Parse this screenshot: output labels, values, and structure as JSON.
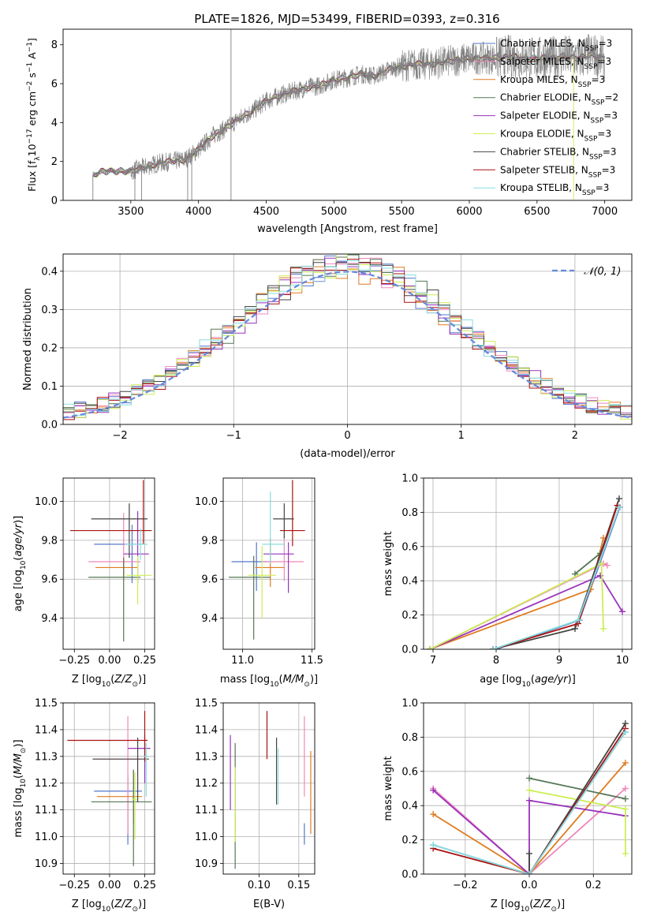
{
  "title": "PLATE=1826, MJD=53499, FIBERID=0393, z=0.316",
  "colors": {
    "Chabrier MILES": "#5577cc",
    "Salpeter MILES": "#ee88bb",
    "Kroupa MILES": "#e07b20",
    "Chabrier ELODIE": "#557755",
    "Salpeter ELODIE": "#9933bb",
    "Kroupa ELODIE": "#ccee55",
    "Chabrier STELIB": "#444444",
    "Salpeter STELIB": "#aa1111",
    "Kroupa STELIB": "#88dddd",
    "observed": "#808080",
    "normal_curve": "#6688dd"
  },
  "chart_data": [
    {
      "id": "spectrum",
      "type": "line",
      "title": "PLATE=1826, MJD=53499, FIBERID=0393, z=0.316",
      "xlabel": "wavelength [Angstrom, rest frame]",
      "ylabel": "Flux [fλ10⁻¹⁷ erg cm⁻² s⁻¹ A⁻¹]",
      "xlim": [
        3000,
        7200
      ],
      "ylim": [
        0,
        8.8
      ],
      "xticks": [
        3500,
        4000,
        4500,
        5000,
        5500,
        6000,
        6500,
        7000
      ],
      "yticks": [
        0,
        2,
        4,
        6,
        8
      ],
      "legend_position": "top-right",
      "legend": [
        "Chabrier MILES, N_SSP=3",
        "Salpeter MILES, N_SSP=3",
        "Kroupa MILES, N_SSP=3",
        "Chabrier ELODIE, N_SSP=2",
        "Salpeter ELODIE, N_SSP=3",
        "Kroupa ELODIE, N_SSP=3",
        "Chabrier STELIB, N_SSP=3",
        "Salpeter STELIB, N_SSP=3",
        "Kroupa STELIB, N_SSP=3"
      ],
      "continuum": {
        "x": [
          3220,
          3300,
          3400,
          3500,
          3600,
          3700,
          3800,
          3900,
          4000,
          4100,
          4200,
          4300,
          4400,
          4500,
          4600,
          4700,
          4800,
          4900,
          5000,
          5100,
          5200,
          5300,
          5400,
          5500,
          5600,
          5700,
          5800,
          5900,
          6000,
          6100,
          6200,
          6300,
          6400,
          6500,
          6600,
          6700,
          6800,
          6900,
          7000
        ],
        "y": [
          1.3,
          1.5,
          1.5,
          1.5,
          1.7,
          1.9,
          2.0,
          2.1,
          2.6,
          3.3,
          3.7,
          4.2,
          4.6,
          5.1,
          5.4,
          5.6,
          5.8,
          5.9,
          6.2,
          6.3,
          6.5,
          6.4,
          6.7,
          6.9,
          7.0,
          7.0,
          7.1,
          7.2,
          7.3,
          7.3,
          7.3,
          7.4,
          7.3,
          7.3,
          7.3,
          7.4,
          7.3,
          7.5,
          7.3
        ]
      }
    },
    {
      "id": "residuals",
      "type": "histogram",
      "xlabel": "(data-model)/error",
      "ylabel": "Normed distribution",
      "xlim": [
        -2.5,
        2.5
      ],
      "ylim": [
        0,
        0.445
      ],
      "xticks": [
        -2,
        -1,
        0,
        1,
        2
      ],
      "yticks": [
        0.0,
        0.1,
        0.2,
        0.3,
        0.4
      ],
      "legend": [
        "𝒩(0, 1)"
      ],
      "legend_position": "top-right",
      "bin_width": 0.1
    },
    {
      "id": "age-vs-Z",
      "type": "scatter",
      "xlabel": "Z [log₁₀(Z/Z⊙)]",
      "ylabel": "age  [log₁₀(age/yr)]",
      "xlim": [
        -0.33,
        0.32
      ],
      "ylim": [
        9.24,
        10.12
      ],
      "xticks": [
        -0.25,
        0.0,
        0.25
      ],
      "yticks": [
        9.4,
        9.6,
        9.8,
        10.0
      ],
      "points": [
        {
          "model": "Chabrier MILES",
          "x": 0.16,
          "xerr": [
            0.27,
            0.08
          ],
          "y": 9.78,
          "yerr": [
            0.2,
            0.1
          ]
        },
        {
          "model": "Salpeter MILES",
          "x": 0.1,
          "xerr": [
            0.25,
            0.12
          ],
          "y": 9.69,
          "yerr": [
            0.1,
            0.25
          ]
        },
        {
          "model": "Kroupa MILES",
          "x": 0.1,
          "xerr": [
            0.2,
            0.1
          ],
          "y": 9.66,
          "yerr": [
            0.05,
            0.05
          ]
        },
        {
          "model": "Chabrier ELODIE",
          "x": 0.1,
          "xerr": [
            0.25,
            0.12
          ],
          "y": 9.61,
          "yerr": [
            0.33,
            0.1
          ]
        },
        {
          "model": "Salpeter ELODIE",
          "x": 0.2,
          "xerr": [
            0.1,
            0.08
          ],
          "y": 9.73,
          "yerr": [
            0.15,
            0.22
          ]
        },
        {
          "model": "Kroupa ELODIE",
          "x": 0.2,
          "xerr": [
            0.08,
            0.1
          ],
          "y": 9.62,
          "yerr": [
            0.15,
            0.1
          ]
        },
        {
          "model": "Chabrier STELIB",
          "x": 0.14,
          "xerr": [
            0.27,
            0.13
          ],
          "y": 9.91,
          "yerr": [
            0.2,
            0.08
          ]
        },
        {
          "model": "Salpeter STELIB",
          "x": 0.24,
          "xerr": [
            0.52,
            0.06
          ],
          "y": 9.85,
          "yerr": [
            0.07,
            0.26
          ]
        },
        {
          "model": "Kroupa STELIB",
          "x": 0.22,
          "xerr": [
            0.11,
            0.05
          ],
          "y": 9.78,
          "yerr": [
            0.08,
            0.08
          ]
        }
      ]
    },
    {
      "id": "age-vs-mass",
      "type": "scatter",
      "xlabel": "mass [log₁₀(M/M⊙)]",
      "ylabel": "",
      "xlim": [
        10.86,
        11.52
      ],
      "ylim": [
        9.24,
        10.12
      ],
      "xticks": [
        11.0,
        11.5
      ],
      "yticks": [
        9.4,
        9.6,
        9.8,
        10.0
      ],
      "points": [
        {
          "model": "Chabrier MILES",
          "x": 11.1,
          "xerr": [
            0.18,
            0.1
          ],
          "y": 9.69,
          "yerr": [
            0.15,
            0.1
          ]
        },
        {
          "model": "Salpeter MILES",
          "x": 11.3,
          "xerr": [
            0.16,
            0.14
          ],
          "y": 9.69,
          "yerr": [
            0.1,
            0.13
          ]
        },
        {
          "model": "Kroupa MILES",
          "x": 11.2,
          "xerr": [
            0.11,
            0.1
          ],
          "y": 9.66,
          "yerr": [
            0.1,
            0.15
          ]
        },
        {
          "model": "Chabrier ELODIE",
          "x": 11.08,
          "xerr": [
            0.18,
            0.12
          ],
          "y": 9.61,
          "yerr": [
            0.32,
            0.11
          ]
        },
        {
          "model": "Salpeter ELODIE",
          "x": 11.33,
          "xerr": [
            0.18,
            0.04
          ],
          "y": 9.73,
          "yerr": [
            0.2,
            0.06
          ]
        },
        {
          "model": "Kroupa ELODIE",
          "x": 11.14,
          "xerr": [
            0.1,
            0.1
          ],
          "y": 9.62,
          "yerr": [
            0.22,
            0.15
          ]
        },
        {
          "model": "Chabrier STELIB",
          "x": 11.3,
          "xerr": [
            0.08,
            0.07
          ],
          "y": 9.91,
          "yerr": [
            0.1,
            0.08
          ]
        },
        {
          "model": "Salpeter STELIB",
          "x": 11.36,
          "xerr": [
            0.09,
            0.09
          ],
          "y": 9.85,
          "yerr": [
            0.08,
            0.26
          ]
        },
        {
          "model": "Kroupa STELIB",
          "x": 11.2,
          "xerr": [
            0.06,
            0.1
          ],
          "y": 9.78,
          "yerr": [
            0.1,
            0.27
          ]
        }
      ]
    },
    {
      "id": "massweight-vs-age",
      "type": "line",
      "xlabel": "age  [log₁₀(age/yr)]",
      "ylabel": "mass weight",
      "xlim": [
        6.85,
        10.15
      ],
      "ylim": [
        0,
        1.0
      ],
      "xticks": [
        7,
        8,
        9,
        10
      ],
      "yticks": [
        0.0,
        0.2,
        0.4,
        0.6,
        0.8,
        1.0
      ],
      "series": [
        {
          "model": "Chabrier MILES",
          "x": [
            8.0,
            9.32,
            9.96
          ],
          "y": [
            0.0,
            0.17,
            0.83
          ]
        },
        {
          "model": "Salpeter MILES",
          "x": [
            6.95,
            9.7,
            9.76
          ],
          "y": [
            0.0,
            0.5,
            0.49
          ]
        },
        {
          "model": "Kroupa MILES",
          "x": [
            6.95,
            9.5,
            9.7
          ],
          "y": [
            0.0,
            0.35,
            0.65
          ]
        },
        {
          "model": "Chabrier ELODIE",
          "x": [
            9.25,
            9.65
          ],
          "y": [
            0.44,
            0.56
          ]
        },
        {
          "model": "Salpeter ELODIE",
          "x": [
            6.95,
            9.65,
            10.0
          ],
          "y": [
            0.0,
            0.43,
            0.22
          ]
        },
        {
          "model": "Kroupa ELODIE",
          "x": [
            6.95,
            9.67,
            9.7
          ],
          "y": [
            0.0,
            0.5,
            0.12
          ]
        },
        {
          "model": "Chabrier STELIB",
          "x": [
            7.95,
            9.25,
            9.95
          ],
          "y": [
            0.0,
            0.12,
            0.88
          ]
        },
        {
          "model": "Salpeter STELIB",
          "x": [
            7.95,
            9.3,
            9.92
          ],
          "y": [
            0.0,
            0.15,
            0.84
          ]
        },
        {
          "model": "Kroupa STELIB",
          "x": [
            7.95,
            9.3,
            9.95
          ],
          "y": [
            0.0,
            0.17,
            0.83
          ]
        }
      ]
    },
    {
      "id": "mass-vs-Z",
      "type": "scatter",
      "xlabel": "Z [log₁₀(Z/Z⊙)]",
      "ylabel": "mass [log₁₀(M/M⊙)]",
      "xlim": [
        -0.33,
        0.32
      ],
      "ylim": [
        10.86,
        11.5
      ],
      "xticks": [
        -0.25,
        0.0,
        0.25
      ],
      "yticks": [
        10.9,
        11.0,
        11.1,
        11.2,
        11.3,
        11.4,
        11.5
      ],
      "points": [
        {
          "model": "Chabrier MILES",
          "x": 0.13,
          "xerr": [
            0.24,
            0.1
          ],
          "y": 11.17,
          "yerr": [
            0.2,
            0.06
          ]
        },
        {
          "model": "Salpeter MILES",
          "x": 0.13,
          "xerr": [
            0.25,
            0.09
          ],
          "y": 11.29,
          "yerr": [
            0.28,
            0.16
          ]
        },
        {
          "model": "Kroupa MILES",
          "x": 0.17,
          "xerr": [
            0.26,
            0.06
          ],
          "y": 11.15,
          "yerr": [
            0.1,
            0.1
          ]
        },
        {
          "model": "Chabrier ELODIE",
          "x": 0.17,
          "xerr": [
            0.3,
            0.13
          ],
          "y": 11.13,
          "yerr": [
            0.24,
            0.12
          ]
        },
        {
          "model": "Salpeter ELODIE",
          "x": 0.25,
          "xerr": [
            0.12,
            0.04
          ],
          "y": 11.33,
          "yerr": [
            0.13,
            0.05
          ]
        },
        {
          "model": "Kroupa ELODIE",
          "x": 0.18,
          "xerr": [
            0.02,
            0.02
          ],
          "y": 11.14,
          "yerr": [
            0.15,
            0.1
          ]
        },
        {
          "model": "Chabrier STELIB",
          "x": 0.2,
          "xerr": [
            0.32,
            0.08
          ],
          "y": 11.29,
          "yerr": [
            0.16,
            0.08
          ]
        },
        {
          "model": "Salpeter STELIB",
          "x": 0.25,
          "xerr": [
            0.55,
            0.02
          ],
          "y": 11.36,
          "yerr": [
            0.08,
            0.11
          ]
        },
        {
          "model": "Kroupa STELIB",
          "x": 0.26,
          "xerr": [
            0.02,
            0.02
          ],
          "y": 11.3,
          "yerr": [
            0.15,
            0.05
          ]
        }
      ]
    },
    {
      "id": "mass-vs-EBV",
      "type": "scatter",
      "xlabel": "E(B-V)",
      "ylabel": "",
      "xlim": [
        0.055,
        0.17
      ],
      "ylim": [
        10.86,
        11.5
      ],
      "xticks": [
        0.1,
        0.15
      ],
      "yticks": [
        10.9,
        11.0,
        11.1,
        11.2,
        11.3,
        11.4,
        11.5
      ],
      "points": [
        {
          "model": "Chabrier MILES",
          "x": 0.157,
          "y": 11.05,
          "yerr": [
            0.08,
            0.0
          ]
        },
        {
          "model": "Salpeter MILES",
          "x": 0.157,
          "y": 11.3,
          "yerr": [
            0.15,
            0.15
          ]
        },
        {
          "model": "Kroupa MILES",
          "x": 0.165,
          "y": 11.18,
          "yerr": [
            0.17,
            0.14
          ]
        },
        {
          "model": "Chabrier ELODIE",
          "x": 0.07,
          "y": 11.13,
          "yerr": [
            0.25,
            0.22
          ]
        },
        {
          "model": "Salpeter ELODIE",
          "x": 0.064,
          "y": 11.24,
          "yerr": [
            0.14,
            0.14
          ]
        },
        {
          "model": "Kroupa ELODIE",
          "x": 0.07,
          "y": 11.14,
          "yerr": [
            0.16,
            0.12
          ]
        },
        {
          "model": "Chabrier STELIB",
          "x": 0.122,
          "y": 11.25,
          "yerr": [
            0.13,
            0.12
          ]
        },
        {
          "model": "Salpeter STELIB",
          "x": 0.11,
          "y": 11.38,
          "yerr": [
            0.09,
            0.09
          ]
        },
        {
          "model": "Kroupa STELIB",
          "x": 0.124,
          "y": 11.23,
          "yerr": [
            0.11,
            0.1
          ]
        }
      ]
    },
    {
      "id": "massweight-vs-Z",
      "type": "line",
      "xlabel": "Z [log₁₀(Z/Z⊙)]",
      "ylabel": "mass weight",
      "xlim": [
        -0.33,
        0.32
      ],
      "ylim": [
        0,
        1.0
      ],
      "xticks": [
        -0.2,
        0.0,
        0.2
      ],
      "yticks": [
        0.0,
        0.2,
        0.4,
        0.6,
        0.8,
        1.0
      ],
      "series": [
        {
          "model": "Chabrier MILES",
          "x": [
            -0.3,
            0.0,
            0.3
          ],
          "y": [
            0.17,
            0.0,
            0.83
          ]
        },
        {
          "model": "Salpeter MILES",
          "x": [
            -0.3,
            0.0,
            0.3
          ],
          "y": [
            0.5,
            0.0,
            0.5
          ]
        },
        {
          "model": "Kroupa MILES",
          "x": [
            -0.3,
            0.0,
            0.3
          ],
          "y": [
            0.35,
            0.0,
            0.65
          ]
        },
        {
          "model": "Chabrier ELODIE",
          "x": [
            0.0,
            0.3
          ],
          "y": [
            0.56,
            0.44
          ]
        },
        {
          "model": "Salpeter ELODIE",
          "x": [
            -0.3,
            0.0,
            0.0,
            0.3
          ],
          "y": [
            0.49,
            0.0,
            0.43,
            0.34
          ]
        },
        {
          "model": "Kroupa ELODIE",
          "x": [
            0.0,
            0.3,
            0.3
          ],
          "y": [
            0.49,
            0.38,
            0.12
          ]
        },
        {
          "model": "Chabrier STELIB",
          "x": [
            0.0,
            0.0,
            0.3
          ],
          "y": [
            0.12,
            0.0,
            0.88
          ]
        },
        {
          "model": "Salpeter STELIB",
          "x": [
            -0.3,
            0.0,
            0.3
          ],
          "y": [
            0.15,
            0.0,
            0.85
          ]
        },
        {
          "model": "Kroupa STELIB",
          "x": [
            -0.3,
            0.0,
            0.3
          ],
          "y": [
            0.17,
            0.0,
            0.83
          ]
        }
      ]
    }
  ]
}
